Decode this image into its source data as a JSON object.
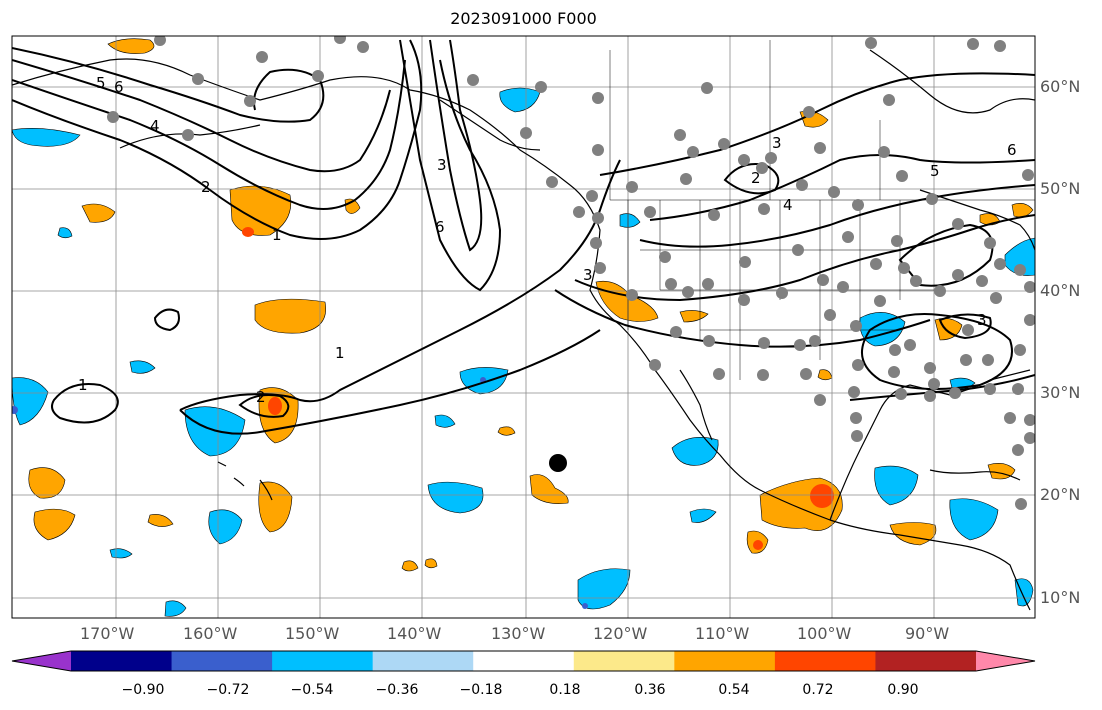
{
  "title": "2023091000 F000",
  "map": {
    "lon_labels": [
      "170°W",
      "160°W",
      "150°W",
      "140°W",
      "130°W",
      "120°W",
      "110°W",
      "100°W",
      "90°W"
    ],
    "lat_labels": [
      "60°N",
      "50°N",
      "40°N",
      "30°N",
      "20°N",
      "10°N"
    ],
    "contour_labels": [
      "1",
      "1",
      "1",
      "2",
      "2",
      "2",
      "3",
      "3",
      "3",
      "3",
      "4",
      "4",
      "5",
      "5",
      "6",
      "6",
      "6"
    ],
    "contour_color": "#000000",
    "coast_color": "#000000",
    "station_marker_color": "#808080",
    "highlight_marker_color": "#000000"
  },
  "colorbar": {
    "tick_labels": [
      "−0.90",
      "−0.72",
      "−0.54",
      "−0.36",
      "−0.18",
      "0.18",
      "0.36",
      "0.54",
      "0.72",
      "0.90"
    ],
    "colors": [
      "#9933cc",
      "#00008b",
      "#3a5fcd",
      "#00bfff",
      "#add8f5",
      "#ffffff",
      "#fce98a",
      "#ffa500",
      "#ff4500",
      "#b22222",
      "#ff88aa"
    ]
  }
}
